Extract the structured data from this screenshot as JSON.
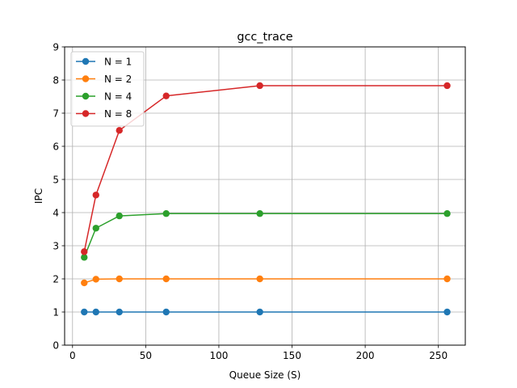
{
  "chart_data": {
    "type": "line",
    "title": "gcc_trace",
    "xlabel": "Queue Size (S)",
    "ylabel": "IPC",
    "xlim": [
      -5.4,
      268.4
    ],
    "ylim": [
      0,
      9
    ],
    "xticks": [
      0,
      50,
      100,
      150,
      200,
      250
    ],
    "yticks": [
      0,
      1,
      2,
      3,
      4,
      5,
      6,
      7,
      8,
      9
    ],
    "grid": true,
    "legend_position": "top-left",
    "x": [
      8,
      16,
      32,
      64,
      128,
      256
    ],
    "series": [
      {
        "name": "N = 1",
        "color": "#1f77b4",
        "values": [
          1.0,
          1.0,
          1.0,
          1.0,
          1.0,
          1.0
        ]
      },
      {
        "name": "N = 2",
        "color": "#ff7f0e",
        "values": [
          1.88,
          1.99,
          2.0,
          2.0,
          2.0,
          2.0
        ]
      },
      {
        "name": "N = 4",
        "color": "#2ca02c",
        "values": [
          2.65,
          3.53,
          3.9,
          3.97,
          3.97,
          3.97
        ]
      },
      {
        "name": "N = 8",
        "color": "#d62728",
        "values": [
          2.82,
          4.53,
          6.48,
          7.52,
          7.83,
          7.83
        ]
      }
    ]
  }
}
